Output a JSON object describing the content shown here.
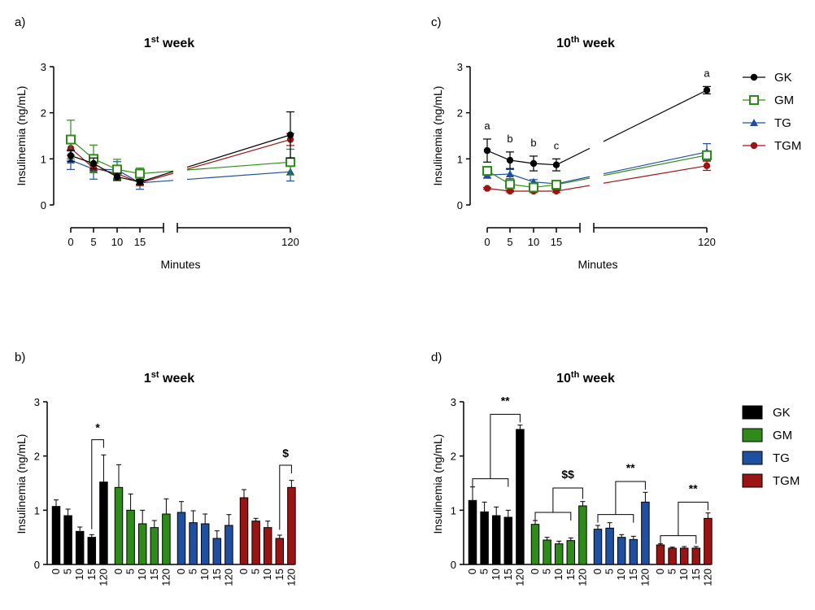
{
  "colors": {
    "GK": "#000000",
    "GM": "#2e8b1a",
    "TG": "#1e4fa0",
    "TGM": "#9b1414"
  },
  "series_names": [
    "GK",
    "GM",
    "TG",
    "TGM"
  ],
  "chart_data": [
    {
      "panel": "a)",
      "type": "line",
      "title": "1",
      "title_sup": "st",
      "title_rest": " week",
      "xlabel": "Minutes",
      "ylabel": "Insulinemia (ng/mL)",
      "x": [
        0,
        5,
        10,
        15,
        120
      ],
      "x_tick_labels": [
        "0",
        "5",
        "10",
        "15",
        "120"
      ],
      "ylim": [
        0,
        3
      ],
      "y_ticks": [
        "0",
        "1",
        "2",
        "3"
      ],
      "legend": "none",
      "series": [
        {
          "name": "GK",
          "values": [
            1.07,
            0.9,
            0.61,
            0.5,
            1.52
          ],
          "errors": [
            0.12,
            0.12,
            0.08,
            0.05,
            0.5
          ]
        },
        {
          "name": "GM",
          "values": [
            1.42,
            1.0,
            0.77,
            0.68,
            0.93
          ],
          "errors": [
            0.42,
            0.3,
            0.22,
            0.12,
            0.28
          ]
        },
        {
          "name": "TG",
          "values": [
            0.97,
            0.78,
            0.76,
            0.48,
            0.72
          ],
          "errors": [
            0.2,
            0.22,
            0.18,
            0.14,
            0.2
          ]
        },
        {
          "name": "TGM",
          "values": [
            1.23,
            0.8,
            0.68,
            0.48,
            1.42
          ],
          "errors": [
            0.15,
            0.05,
            0.12,
            0.06,
            0.13
          ]
        }
      ]
    },
    {
      "panel": "c)",
      "type": "line",
      "title": "10",
      "title_sup": "th",
      "title_rest": " week",
      "xlabel": "Minutes",
      "ylabel": "Insulinemia (ng/mL)",
      "x": [
        0,
        5,
        10,
        15,
        120
      ],
      "x_tick_labels": [
        "0",
        "5",
        "10",
        "15",
        "120"
      ],
      "ylim": [
        0,
        3
      ],
      "y_ticks": [
        "0",
        "1",
        "2",
        "3"
      ],
      "legend": "right",
      "annotations": [
        "a",
        "b",
        "b",
        "c",
        "a"
      ],
      "series": [
        {
          "name": "GK",
          "values": [
            1.18,
            0.97,
            0.9,
            0.87,
            2.49
          ],
          "errors": [
            0.25,
            0.18,
            0.16,
            0.13,
            0.08
          ]
        },
        {
          "name": "GM",
          "values": [
            0.74,
            0.45,
            0.38,
            0.44,
            1.08
          ],
          "errors": [
            0.07,
            0.05,
            0.05,
            0.05,
            0.08
          ]
        },
        {
          "name": "TG",
          "values": [
            0.65,
            0.67,
            0.5,
            0.46,
            1.15
          ],
          "errors": [
            0.07,
            0.1,
            0.05,
            0.06,
            0.18
          ]
        },
        {
          "name": "TGM",
          "values": [
            0.36,
            0.3,
            0.3,
            0.3,
            0.85
          ],
          "errors": [
            0.02,
            0.02,
            0.03,
            0.03,
            0.1
          ]
        }
      ]
    },
    {
      "panel": "b)",
      "type": "bar",
      "title": "1",
      "title_sup": "st",
      "title_rest": " week",
      "ylabel": "Insulinemia (ng/mL)",
      "categories": [
        "0",
        "5",
        "10",
        "15",
        "120"
      ],
      "ylim": [
        0,
        3
      ],
      "y_ticks": [
        "0",
        "1",
        "2",
        "3"
      ],
      "legend": "none",
      "series": [
        {
          "name": "GK",
          "values": [
            1.07,
            0.9,
            0.61,
            0.5,
            1.52
          ],
          "errors": [
            0.12,
            0.12,
            0.08,
            0.05,
            0.5
          ]
        },
        {
          "name": "GM",
          "values": [
            1.42,
            1.0,
            0.75,
            0.68,
            0.93
          ],
          "errors": [
            0.42,
            0.3,
            0.25,
            0.13,
            0.28
          ]
        },
        {
          "name": "TG",
          "values": [
            0.96,
            0.77,
            0.75,
            0.48,
            0.72
          ],
          "errors": [
            0.2,
            0.22,
            0.18,
            0.14,
            0.2
          ]
        },
        {
          "name": "TGM",
          "values": [
            1.23,
            0.8,
            0.68,
            0.48,
            1.42
          ],
          "errors": [
            0.15,
            0.05,
            0.12,
            0.06,
            0.13
          ]
        }
      ],
      "significance": [
        {
          "label": "*",
          "group": 0,
          "type": "pair",
          "from": 3,
          "to": 4
        },
        {
          "label": "$",
          "group": 3,
          "type": "pair",
          "from": 3,
          "to": 4
        }
      ]
    },
    {
      "panel": "d)",
      "type": "bar",
      "title": "10",
      "title_sup": "th",
      "title_rest": " week",
      "ylabel": "Insulinemia (ng/mL)",
      "categories": [
        "0",
        "5",
        "10",
        "15",
        "120"
      ],
      "ylim": [
        0,
        3
      ],
      "y_ticks": [
        "0",
        "1",
        "2",
        "3"
      ],
      "legend": "right",
      "series": [
        {
          "name": "GK",
          "values": [
            1.18,
            0.97,
            0.9,
            0.87,
            2.49
          ],
          "errors": [
            0.25,
            0.18,
            0.16,
            0.13,
            0.08
          ]
        },
        {
          "name": "GM",
          "values": [
            0.74,
            0.45,
            0.38,
            0.44,
            1.08
          ],
          "errors": [
            0.07,
            0.05,
            0.05,
            0.05,
            0.08
          ]
        },
        {
          "name": "TG",
          "values": [
            0.65,
            0.67,
            0.5,
            0.46,
            1.15
          ],
          "errors": [
            0.07,
            0.1,
            0.05,
            0.06,
            0.18
          ]
        },
        {
          "name": "TGM",
          "values": [
            0.36,
            0.3,
            0.3,
            0.3,
            0.85
          ],
          "errors": [
            0.02,
            0.02,
            0.03,
            0.03,
            0.1
          ]
        }
      ],
      "significance": [
        {
          "label": "**",
          "group": 0,
          "type": "group"
        },
        {
          "label": "$$",
          "group": 1,
          "type": "group"
        },
        {
          "label": "**",
          "group": 2,
          "type": "group"
        },
        {
          "label": "**",
          "group": 3,
          "type": "group"
        }
      ]
    }
  ]
}
